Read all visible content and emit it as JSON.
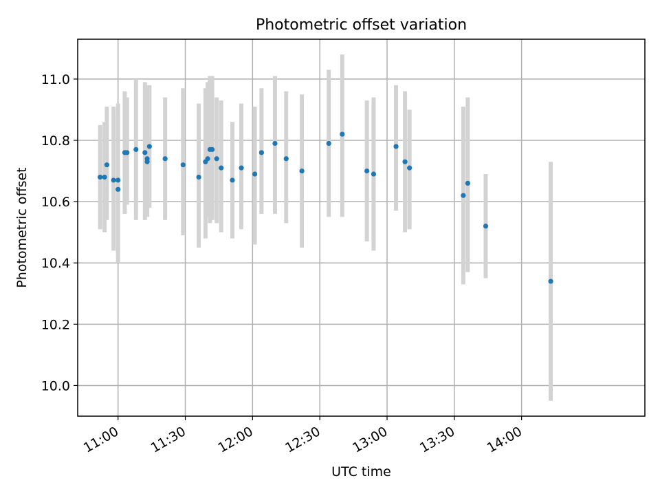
{
  "chart_data": {
    "type": "scatter",
    "title": "Photometric offset variation",
    "xlabel": "UTC time",
    "ylabel": "Photometric offset",
    "grid": true,
    "x_unit": "UTC time (HH:MM)",
    "xlim": [
      "10:42",
      "14:55"
    ],
    "ylim": [
      9.9,
      11.13
    ],
    "x_ticks": [
      "11:00",
      "11:30",
      "12:00",
      "12:30",
      "13:00",
      "13:30",
      "14:00"
    ],
    "y_ticks": [
      "10.0",
      "10.2",
      "10.4",
      "10.6",
      "10.8",
      "11.0"
    ],
    "series": [
      {
        "marker_color": "#1f77b4",
        "errorbar_color": "#d3d3d3",
        "points": [
          {
            "x": "10:52",
            "y": 10.68,
            "y_low": 10.51,
            "y_high": 10.85
          },
          {
            "x": "10:54",
            "y": 10.68,
            "y_low": 10.5,
            "y_high": 10.86
          },
          {
            "x": "10:55",
            "y": 10.72,
            "y_low": 10.54,
            "y_high": 10.91
          },
          {
            "x": "10:58",
            "y": 10.67,
            "y_low": 10.44,
            "y_high": 10.91
          },
          {
            "x": "11:00",
            "y": 10.67,
            "y_low": 10.43,
            "y_high": 10.92
          },
          {
            "x": "11:00",
            "y": 10.64,
            "y_low": 10.4,
            "y_high": 10.88
          },
          {
            "x": "11:03",
            "y": 10.76,
            "y_low": 10.56,
            "y_high": 10.96
          },
          {
            "x": "11:04",
            "y": 10.76,
            "y_low": 10.59,
            "y_high": 10.94
          },
          {
            "x": "11:08",
            "y": 10.77,
            "y_low": 10.54,
            "y_high": 11.0
          },
          {
            "x": "11:12",
            "y": 10.76,
            "y_low": 10.54,
            "y_high": 10.99
          },
          {
            "x": "11:13",
            "y": 10.74,
            "y_low": 10.55,
            "y_high": 10.98
          },
          {
            "x": "11:13",
            "y": 10.73,
            "y_low": 10.57,
            "y_high": 10.9
          },
          {
            "x": "11:14",
            "y": 10.78,
            "y_low": 10.58,
            "y_high": 10.98
          },
          {
            "x": "11:21",
            "y": 10.74,
            "y_low": 10.54,
            "y_high": 10.94
          },
          {
            "x": "11:29",
            "y": 10.72,
            "y_low": 10.49,
            "y_high": 10.97
          },
          {
            "x": "11:36",
            "y": 10.68,
            "y_low": 10.45,
            "y_high": 10.92
          },
          {
            "x": "11:39",
            "y": 10.73,
            "y_low": 10.48,
            "y_high": 10.97
          },
          {
            "x": "11:40",
            "y": 10.74,
            "y_low": 10.55,
            "y_high": 10.99
          },
          {
            "x": "11:41",
            "y": 10.77,
            "y_low": 10.53,
            "y_high": 11.01
          },
          {
            "x": "11:42",
            "y": 10.77,
            "y_low": 10.54,
            "y_high": 11.01
          },
          {
            "x": "11:44",
            "y": 10.74,
            "y_low": 10.53,
            "y_high": 10.94
          },
          {
            "x": "11:46",
            "y": 10.71,
            "y_low": 10.5,
            "y_high": 10.93
          },
          {
            "x": "11:51",
            "y": 10.67,
            "y_low": 10.48,
            "y_high": 10.86
          },
          {
            "x": "11:55",
            "y": 10.71,
            "y_low": 10.51,
            "y_high": 10.92
          },
          {
            "x": "12:01",
            "y": 10.69,
            "y_low": 10.46,
            "y_high": 10.91
          },
          {
            "x": "12:04",
            "y": 10.76,
            "y_low": 10.56,
            "y_high": 10.97
          },
          {
            "x": "12:10",
            "y": 10.79,
            "y_low": 10.56,
            "y_high": 11.01
          },
          {
            "x": "12:15",
            "y": 10.74,
            "y_low": 10.53,
            "y_high": 10.96
          },
          {
            "x": "12:22",
            "y": 10.7,
            "y_low": 10.45,
            "y_high": 10.95
          },
          {
            "x": "12:34",
            "y": 10.79,
            "y_low": 10.55,
            "y_high": 11.03
          },
          {
            "x": "12:40",
            "y": 10.82,
            "y_low": 10.55,
            "y_high": 11.08
          },
          {
            "x": "12:51",
            "y": 10.7,
            "y_low": 10.47,
            "y_high": 10.93
          },
          {
            "x": "12:54",
            "y": 10.69,
            "y_low": 10.44,
            "y_high": 10.94
          },
          {
            "x": "13:04",
            "y": 10.78,
            "y_low": 10.57,
            "y_high": 10.98
          },
          {
            "x": "13:08",
            "y": 10.73,
            "y_low": 10.5,
            "y_high": 10.96
          },
          {
            "x": "13:10",
            "y": 10.71,
            "y_low": 10.51,
            "y_high": 10.9
          },
          {
            "x": "13:34",
            "y": 10.62,
            "y_low": 10.33,
            "y_high": 10.91
          },
          {
            "x": "13:36",
            "y": 10.66,
            "y_low": 10.37,
            "y_high": 10.94
          },
          {
            "x": "13:44",
            "y": 10.52,
            "y_low": 10.35,
            "y_high": 10.69
          },
          {
            "x": "14:13",
            "y": 10.34,
            "y_low": 9.95,
            "y_high": 10.73
          }
        ]
      }
    ]
  }
}
